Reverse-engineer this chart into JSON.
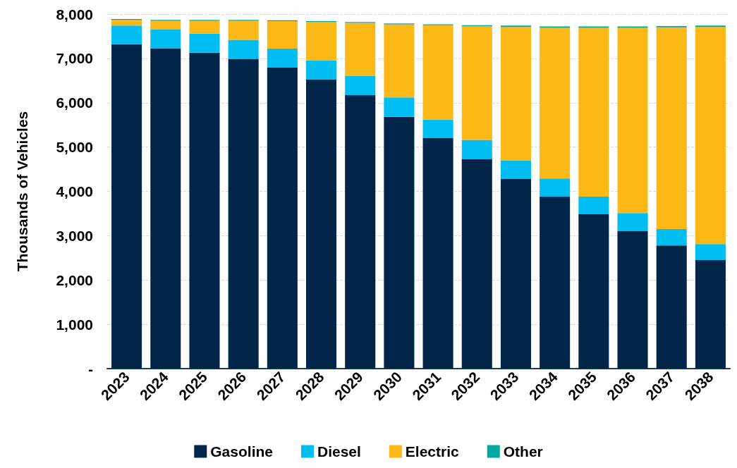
{
  "chart_data": {
    "type": "bar",
    "stacked": true,
    "ylabel": "Thousands of Vehicles",
    "categories": [
      "2023",
      "2024",
      "2025",
      "2026",
      "2027",
      "2028",
      "2029",
      "2030",
      "2031",
      "2032",
      "2033",
      "2034",
      "2035",
      "2036",
      "2037",
      "2038"
    ],
    "series": [
      {
        "name": "Gasoline",
        "color": "#002549",
        "values": [
          7320,
          7230,
          7130,
          6990,
          6800,
          6530,
          6170,
          5680,
          5200,
          4730,
          4280,
          3880,
          3490,
          3110,
          2780,
          2450
        ]
      },
      {
        "name": "Diesel",
        "color": "#00bef2",
        "values": [
          420,
          420,
          430,
          430,
          420,
          430,
          440,
          440,
          420,
          430,
          420,
          410,
          390,
          400,
          370,
          360
        ]
      },
      {
        "name": "Electric",
        "color": "#fbb817",
        "values": [
          130,
          200,
          290,
          430,
          620,
          860,
          1190,
          1650,
          2130,
          2570,
          3010,
          3400,
          3810,
          4180,
          4550,
          4900
        ]
      },
      {
        "name": "Other",
        "color": "#00a99d",
        "values": [
          20,
          20,
          20,
          20,
          20,
          20,
          20,
          20,
          20,
          20,
          30,
          30,
          30,
          30,
          30,
          30
        ]
      }
    ],
    "ylim": [
      0,
      8000
    ],
    "yticks": [
      {
        "value": 0,
        "label": "-"
      },
      {
        "value": 1000,
        "label": "1,000"
      },
      {
        "value": 2000,
        "label": "2,000"
      },
      {
        "value": 3000,
        "label": "3,000"
      },
      {
        "value": 4000,
        "label": "4,000"
      },
      {
        "value": 5000,
        "label": "5,000"
      },
      {
        "value": 6000,
        "label": "6,000"
      },
      {
        "value": 7000,
        "label": "7,000"
      },
      {
        "value": 8000,
        "label": "8,000"
      }
    ],
    "grid": "y",
    "legend": "bottom"
  }
}
